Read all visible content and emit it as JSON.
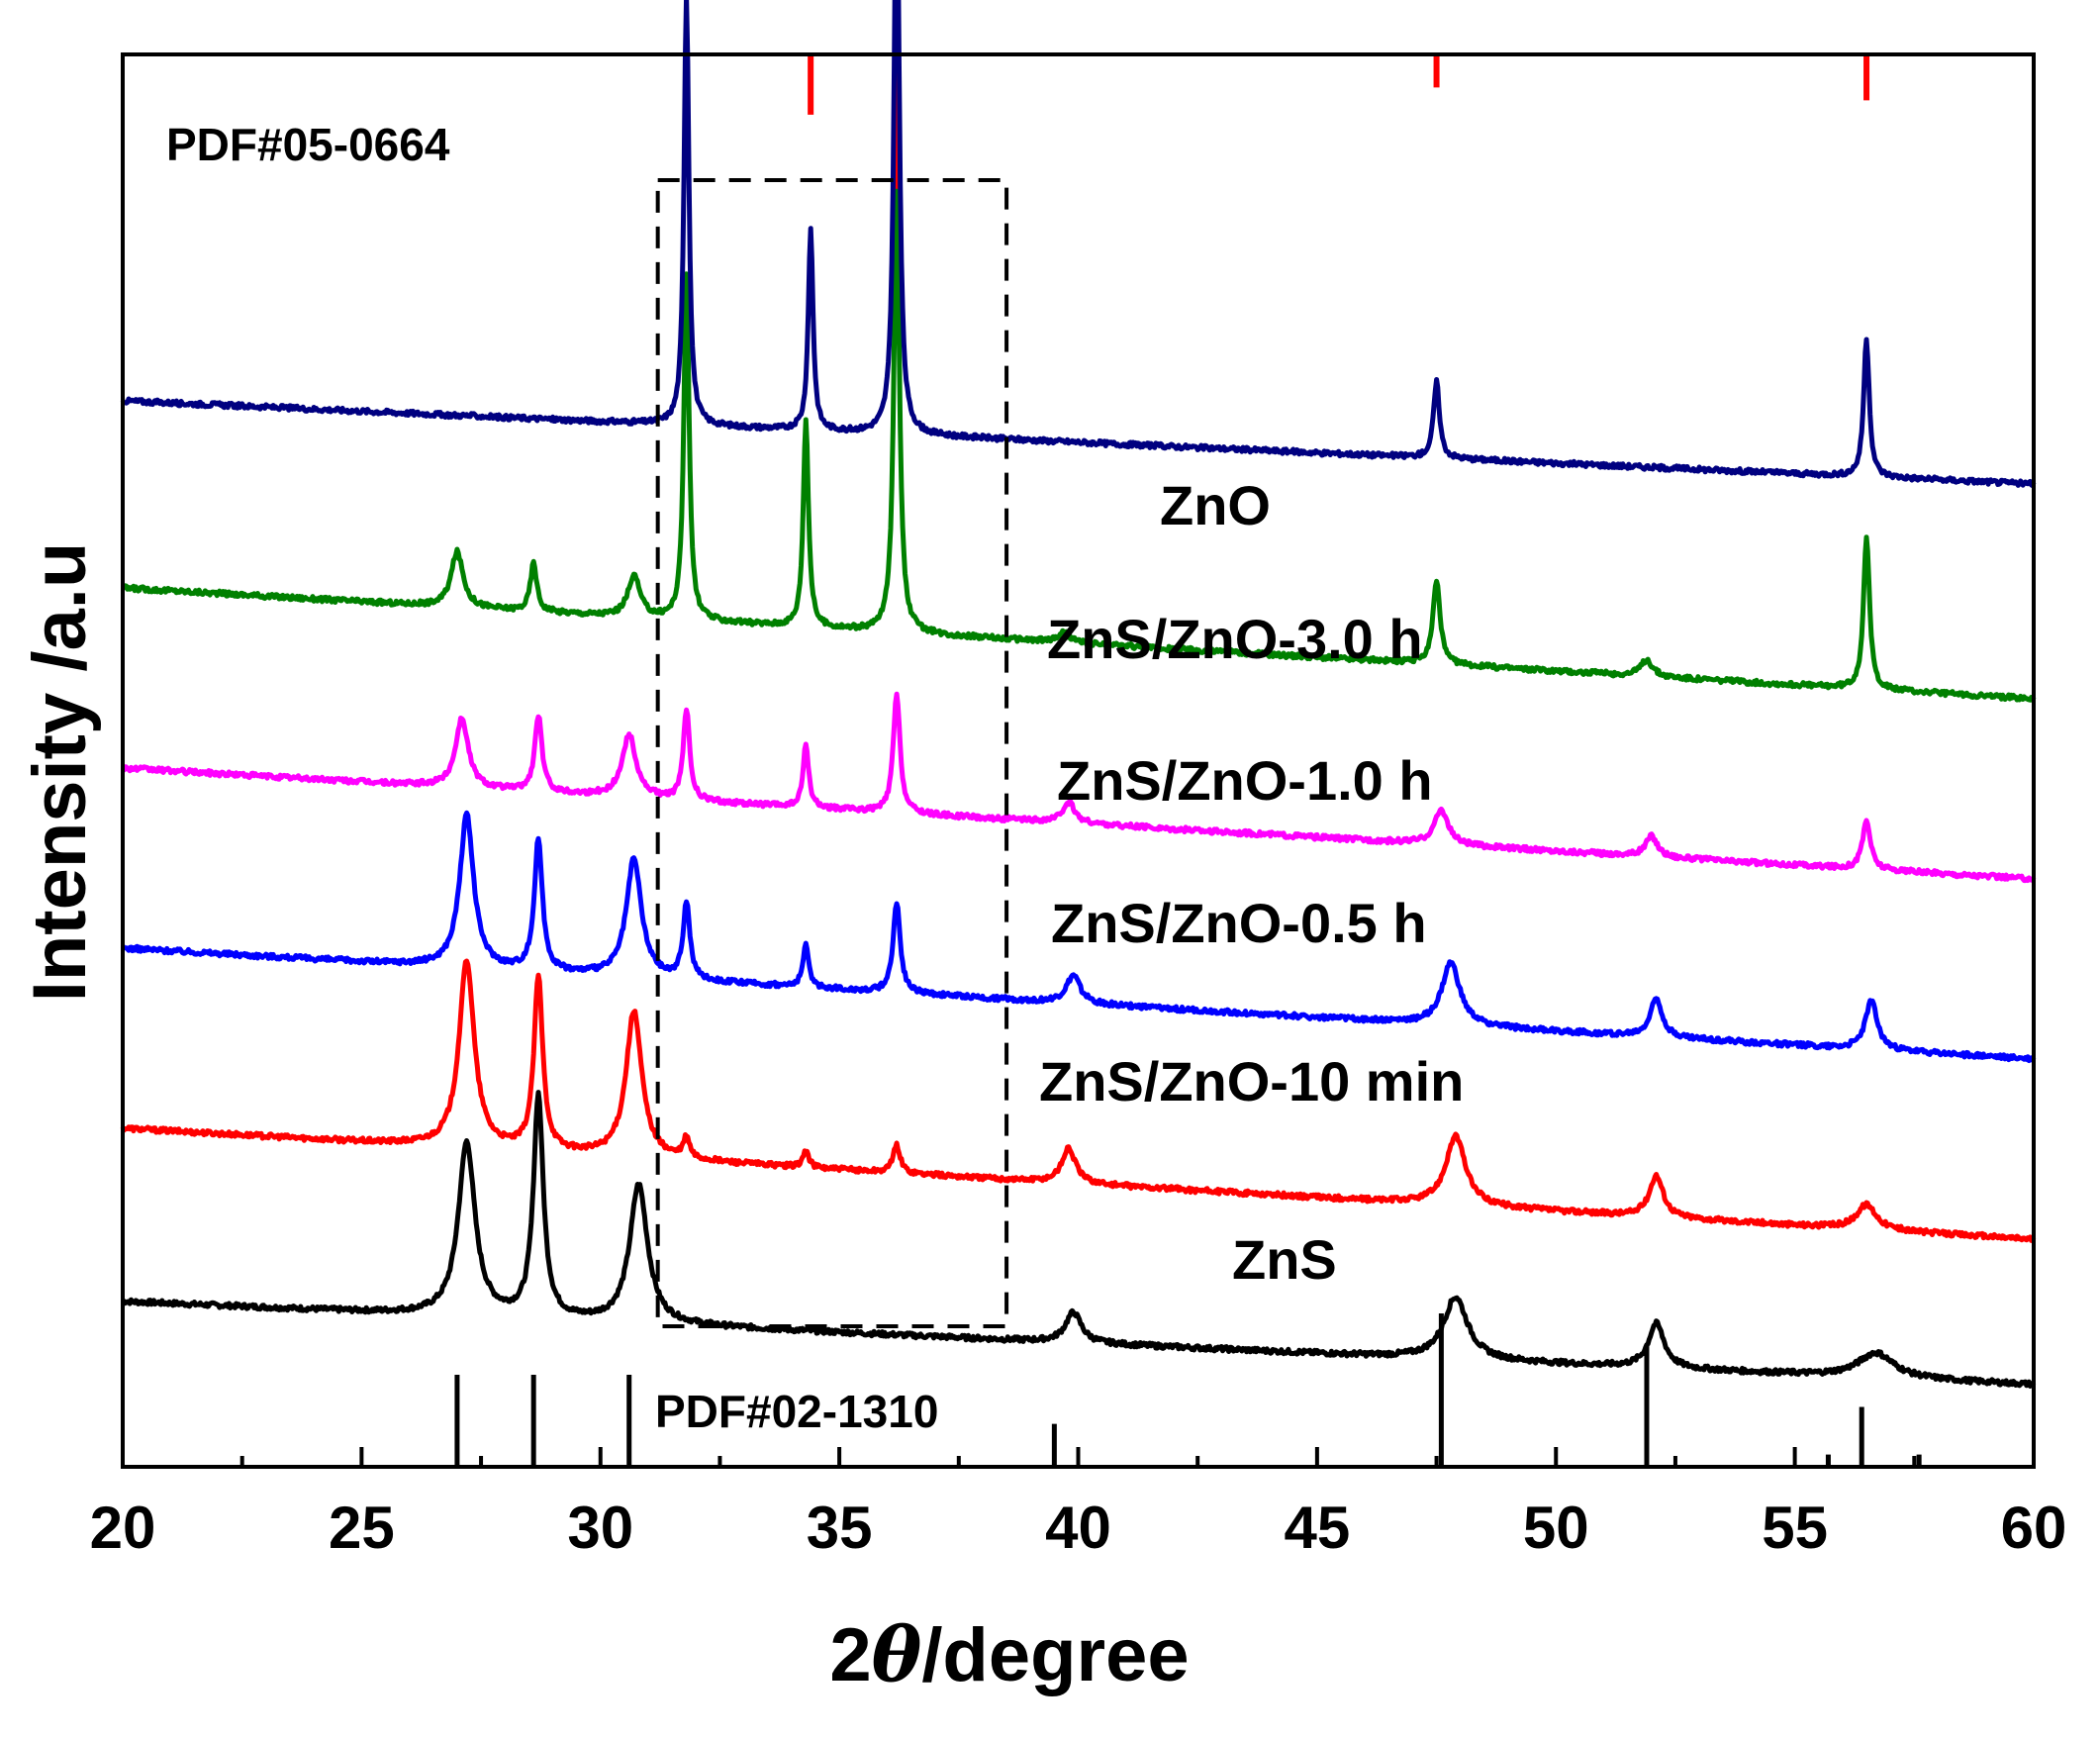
{
  "chart_data": {
    "type": "line",
    "xlabel_prefix": "2",
    "xlabel_symbol": "θ",
    "xlabel_suffix": "/degree",
    "ylabel": "Intensity /a.u",
    "xlim": [
      20,
      60
    ],
    "x_ticks": [
      20,
      25,
      30,
      35,
      40,
      45,
      50,
      55,
      60
    ],
    "x_tick_labels": [
      "20",
      "25",
      "30",
      "35",
      "40",
      "45",
      "50",
      "55",
      "60"
    ],
    "grid": false,
    "highlight_box_x": [
      31.2,
      38.5
    ],
    "colors": {
      "ZnS": "#000000",
      "ZnS/ZnO-10 min": "#ff0000",
      "ZnS/ZnO-0.5 h": "#0000ff",
      "ZnS/ZnO-1.0 h": "#ff00ff",
      "ZnS/ZnO-3.0 h": "#008000",
      "ZnO": "#000080",
      "ref_zno": "#ff0000",
      "ref_zns": "#000000"
    },
    "series": [
      {
        "name": "ZnS",
        "baseline": 0,
        "slope": -0.015,
        "peaks": [
          {
            "x": 27.2,
            "height": 1.25,
            "width": 0.42
          },
          {
            "x": 28.7,
            "height": 1.6,
            "width": 0.25
          },
          {
            "x": 30.8,
            "height": 1.0,
            "width": 0.45
          },
          {
            "x": 39.9,
            "height": 0.22,
            "width": 0.4
          },
          {
            "x": 47.9,
            "height": 0.45,
            "width": 0.6
          },
          {
            "x": 52.1,
            "height": 0.32,
            "width": 0.4
          },
          {
            "x": 56.7,
            "height": 0.18,
            "width": 0.9
          }
        ]
      },
      {
        "name": "ZnS/ZnO-10 min",
        "baseline": 1.25,
        "slope": -0.02,
        "peaks": [
          {
            "x": 27.2,
            "height": 1.35,
            "width": 0.38
          },
          {
            "x": 28.7,
            "height": 1.25,
            "width": 0.22
          },
          {
            "x": 30.7,
            "height": 1.05,
            "width": 0.4
          },
          {
            "x": 31.8,
            "height": 0.15,
            "width": 0.15
          },
          {
            "x": 34.3,
            "height": 0.12,
            "width": 0.15
          },
          {
            "x": 36.2,
            "height": 0.2,
            "width": 0.18
          },
          {
            "x": 39.8,
            "height": 0.25,
            "width": 0.35
          },
          {
            "x": 47.9,
            "height": 0.5,
            "width": 0.5
          },
          {
            "x": 52.1,
            "height": 0.3,
            "width": 0.35
          },
          {
            "x": 56.5,
            "height": 0.18,
            "width": 0.5
          }
        ]
      },
      {
        "name": "ZnS/ZnO-0.5 h",
        "baseline": 2.55,
        "slope": -0.02,
        "peaks": [
          {
            "x": 27.2,
            "height": 1.1,
            "width": 0.35
          },
          {
            "x": 28.7,
            "height": 0.95,
            "width": 0.2
          },
          {
            "x": 30.7,
            "height": 0.85,
            "width": 0.38
          },
          {
            "x": 31.8,
            "height": 0.55,
            "width": 0.17
          },
          {
            "x": 34.3,
            "height": 0.3,
            "width": 0.15
          },
          {
            "x": 36.2,
            "height": 0.65,
            "width": 0.18
          },
          {
            "x": 39.9,
            "height": 0.2,
            "width": 0.35
          },
          {
            "x": 47.8,
            "height": 0.45,
            "width": 0.45
          },
          {
            "x": 52.1,
            "height": 0.28,
            "width": 0.3
          },
          {
            "x": 56.6,
            "height": 0.35,
            "width": 0.3
          }
        ]
      },
      {
        "name": "ZnS/ZnO-1.0 h",
        "baseline": 3.85,
        "slope": -0.02,
        "peaks": [
          {
            "x": 27.1,
            "height": 0.5,
            "width": 0.32
          },
          {
            "x": 28.7,
            "height": 0.55,
            "width": 0.18
          },
          {
            "x": 30.6,
            "height": 0.45,
            "width": 0.35
          },
          {
            "x": 31.8,
            "height": 0.65,
            "width": 0.16
          },
          {
            "x": 34.3,
            "height": 0.45,
            "width": 0.14
          },
          {
            "x": 36.2,
            "height": 0.85,
            "width": 0.17
          },
          {
            "x": 39.8,
            "height": 0.15,
            "width": 0.3
          },
          {
            "x": 47.6,
            "height": 0.25,
            "width": 0.35
          },
          {
            "x": 52.0,
            "height": 0.15,
            "width": 0.3
          },
          {
            "x": 56.5,
            "height": 0.35,
            "width": 0.2
          }
        ]
      },
      {
        "name": "ZnS/ZnO-3.0 h",
        "baseline": 5.15,
        "slope": -0.02,
        "peaks": [
          {
            "x": 27.0,
            "height": 0.4,
            "width": 0.3
          },
          {
            "x": 28.6,
            "height": 0.35,
            "width": 0.16
          },
          {
            "x": 30.7,
            "height": 0.3,
            "width": 0.3
          },
          {
            "x": 31.8,
            "height": 2.5,
            "width": 0.13
          },
          {
            "x": 34.3,
            "height": 1.5,
            "width": 0.13
          },
          {
            "x": 36.2,
            "height": 3.2,
            "width": 0.14
          },
          {
            "x": 39.7,
            "height": 0.07,
            "width": 0.3
          },
          {
            "x": 47.5,
            "height": 0.6,
            "width": 0.18
          },
          {
            "x": 51.9,
            "height": 0.12,
            "width": 0.3
          },
          {
            "x": 56.5,
            "height": 1.1,
            "width": 0.15
          }
        ]
      },
      {
        "name": "ZnO",
        "baseline": 6.5,
        "slope": -0.015,
        "peaks": [
          {
            "x": 31.8,
            "height": 3.1,
            "width": 0.12
          },
          {
            "x": 34.4,
            "height": 1.45,
            "width": 0.12
          },
          {
            "x": 36.2,
            "height": 4.2,
            "width": 0.13
          },
          {
            "x": 47.5,
            "height": 0.55,
            "width": 0.15
          },
          {
            "x": 56.5,
            "height": 1.0,
            "width": 0.14
          }
        ]
      }
    ],
    "reference_zno": {
      "label": "PDF#05-0664",
      "lines": [
        {
          "x": 31.8,
          "intensity": 0.57
        },
        {
          "x": 34.4,
          "intensity": 0.42
        },
        {
          "x": 36.2,
          "intensity": 1.0
        },
        {
          "x": 47.5,
          "intensity": 0.23
        },
        {
          "x": 56.5,
          "intensity": 0.32
        }
      ]
    },
    "reference_zns": {
      "label": "PDF#02-1310",
      "lines": [
        {
          "x": 27.0,
          "intensity": 0.6
        },
        {
          "x": 28.6,
          "intensity": 0.6
        },
        {
          "x": 30.6,
          "intensity": 0.6
        },
        {
          "x": 39.5,
          "intensity": 0.28
        },
        {
          "x": 47.6,
          "intensity": 1.0
        },
        {
          "x": 51.9,
          "intensity": 0.8
        },
        {
          "x": 55.7,
          "intensity": 0.08
        },
        {
          "x": 56.4,
          "intensity": 0.39
        },
        {
          "x": 57.6,
          "intensity": 0.08
        }
      ]
    }
  }
}
